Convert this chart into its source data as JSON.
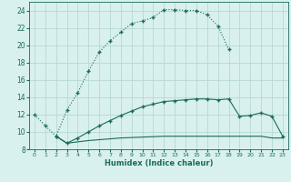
{
  "xlabel": "Humidex (Indice chaleur)",
  "bg_color": "#d8f0ee",
  "grid_color": "#b8d8d4",
  "line_color": "#1a6b5a",
  "xlim": [
    -0.5,
    23.5
  ],
  "ylim": [
    8,
    25
  ],
  "xticks": [
    0,
    1,
    2,
    3,
    4,
    5,
    6,
    7,
    8,
    9,
    10,
    11,
    12,
    13,
    14,
    15,
    16,
    17,
    18,
    19,
    20,
    21,
    22,
    23
  ],
  "yticks": [
    8,
    10,
    12,
    14,
    16,
    18,
    20,
    22,
    24
  ],
  "curve1_x": [
    0,
    1,
    2,
    3,
    4,
    5,
    6,
    7,
    8,
    9,
    10,
    11,
    12,
    13,
    14,
    15,
    16,
    17,
    18
  ],
  "curve1_y": [
    12.0,
    10.7,
    9.5,
    12.5,
    14.5,
    17.0,
    19.2,
    20.5,
    21.5,
    22.5,
    22.8,
    23.2,
    24.1,
    24.1,
    24.0,
    24.0,
    23.5,
    22.2,
    19.5
  ],
  "curve2_x": [
    2,
    3,
    4,
    5,
    6,
    7,
    8,
    9,
    10,
    11,
    12,
    13,
    14,
    15,
    16,
    17,
    18,
    19,
    20,
    21,
    22,
    23
  ],
  "curve2_y": [
    9.5,
    8.7,
    9.3,
    10.0,
    10.7,
    11.3,
    11.9,
    12.4,
    12.9,
    13.2,
    13.5,
    13.6,
    13.7,
    13.8,
    13.8,
    13.7,
    13.8,
    11.8,
    11.9,
    12.2,
    11.8,
    9.5
  ],
  "curve3_x": [
    2,
    3,
    4,
    5,
    6,
    7,
    8,
    9,
    10,
    11,
    12,
    13,
    14,
    15,
    16,
    17,
    18,
    19,
    20,
    21,
    22,
    23
  ],
  "curve3_y": [
    9.5,
    8.7,
    8.85,
    9.0,
    9.1,
    9.2,
    9.3,
    9.35,
    9.4,
    9.45,
    9.5,
    9.5,
    9.5,
    9.5,
    9.5,
    9.5,
    9.5,
    9.5,
    9.5,
    9.5,
    9.3,
    9.3
  ]
}
